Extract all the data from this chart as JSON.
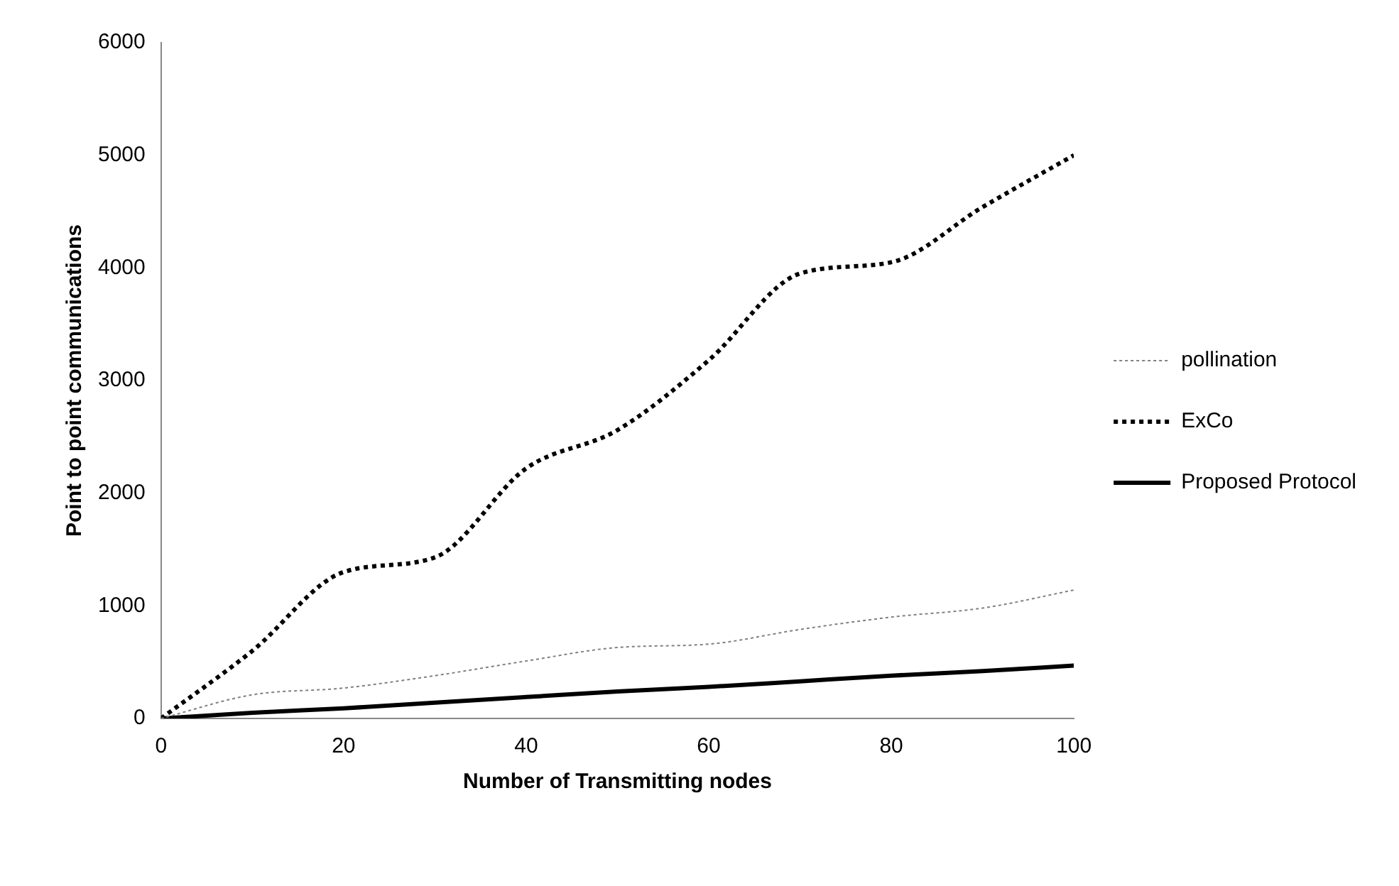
{
  "chart_data": {
    "type": "line",
    "xlabel": "Number of Transmitting nodes",
    "ylabel": "Point to point communications",
    "x": [
      0,
      10,
      20,
      30,
      40,
      50,
      60,
      70,
      80,
      90,
      100
    ],
    "xlim": [
      0,
      100
    ],
    "xticks": [
      0,
      20,
      40,
      60,
      80,
      100
    ],
    "ylim": [
      0,
      6000
    ],
    "yticks": [
      0,
      1000,
      2000,
      3000,
      4000,
      5000,
      6000
    ],
    "grid": false,
    "legend": "right",
    "marker": "none",
    "series": [
      {
        "name": "pollination",
        "color": "#808080",
        "line_style": "dotted",
        "values": [
          0,
          210,
          270,
          380,
          510,
          630,
          660,
          790,
          900,
          980,
          1140
        ]
      },
      {
        "name": "ExCo",
        "color": "#000000",
        "line_style": "dotted",
        "values": [
          0,
          600,
          1300,
          1430,
          2220,
          2560,
          3180,
          3950,
          4050,
          4540,
          5000
        ]
      },
      {
        "name": "Proposed Protocol",
        "color": "#000000",
        "line_style": "solid",
        "values": [
          0,
          50,
          90,
          140,
          190,
          240,
          280,
          330,
          380,
          420,
          470
        ]
      }
    ]
  }
}
